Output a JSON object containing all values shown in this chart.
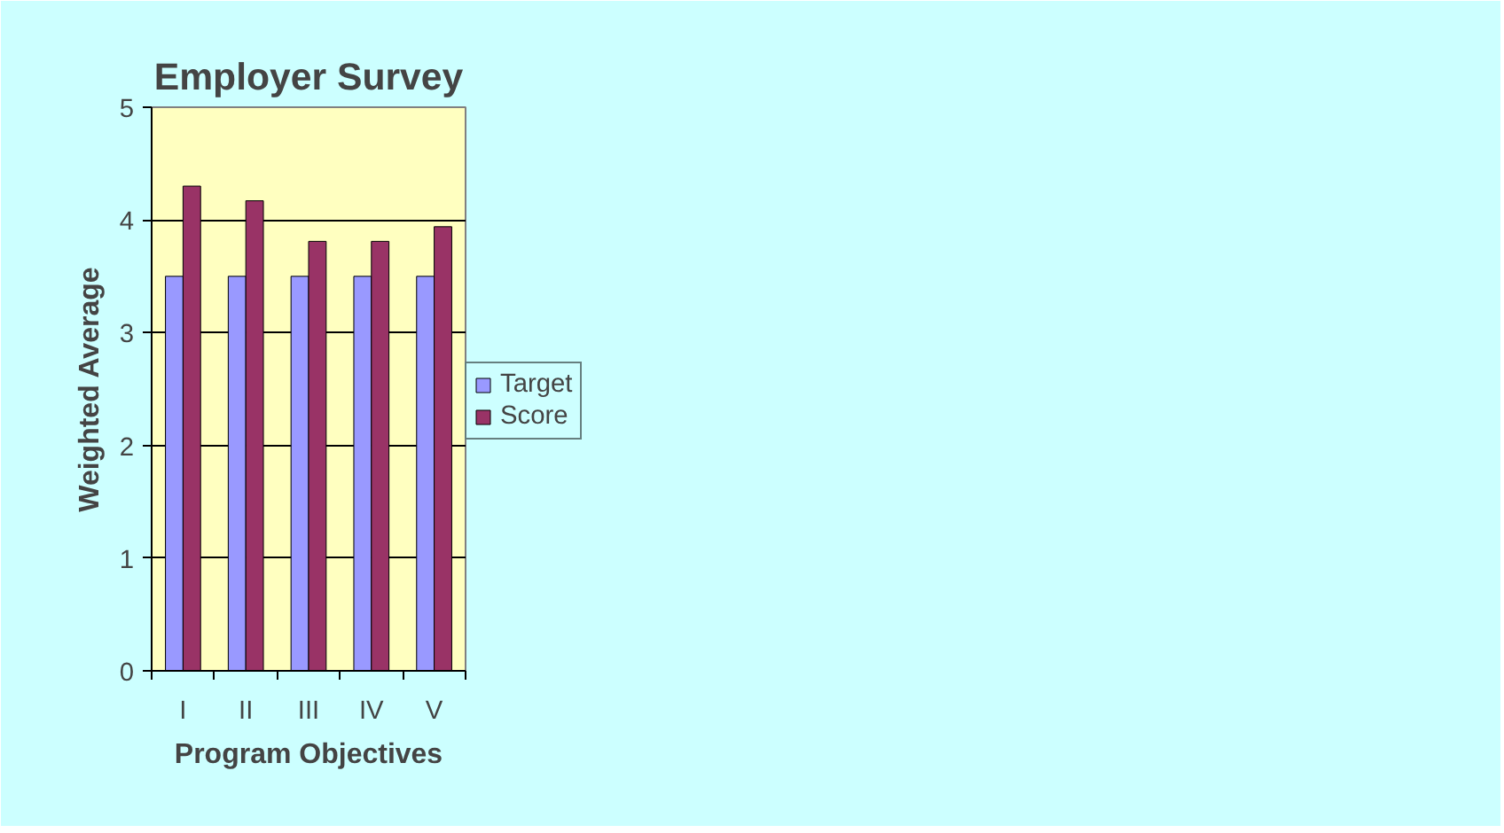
{
  "chart_data": {
    "type": "bar",
    "title": "Employer Survey",
    "xlabel": "Program Objectives",
    "ylabel": "Weighted Average",
    "categories": [
      "I",
      "II",
      "III",
      "IV",
      "V"
    ],
    "series": [
      {
        "name": "Target",
        "color": "#9999ff",
        "values": [
          3.5,
          3.5,
          3.5,
          3.5,
          3.5
        ]
      },
      {
        "name": "Score",
        "color": "#993366",
        "values": [
          4.3,
          4.17,
          3.81,
          3.81,
          3.94
        ]
      }
    ],
    "ylim": [
      0,
      5
    ],
    "yticks": [
      0,
      1,
      2,
      3,
      4,
      5
    ],
    "grid": "y",
    "legend": "right"
  }
}
